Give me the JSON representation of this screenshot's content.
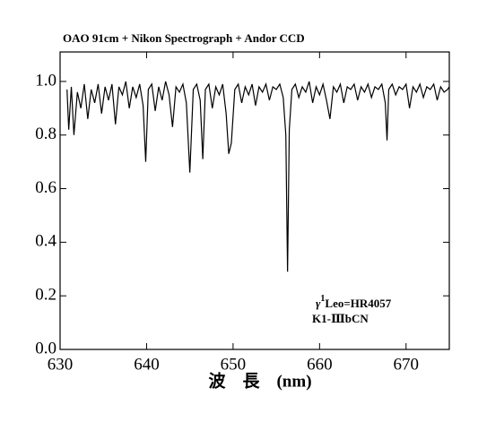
{
  "chart_data": {
    "type": "line",
    "title": "OAO 91cm + Nikon Spectrograph + Andor CCD",
    "xlabel": "波　長　(nm)",
    "annotations": {
      "symbol": "γ",
      "superscript": "1",
      "star": "Leo=HR4057",
      "class": "K1-ⅢbCN"
    },
    "xlim": [
      630,
      675
    ],
    "ylim": [
      0,
      1.11
    ],
    "xticks": [
      630,
      640,
      650,
      660,
      670
    ],
    "yticks": [
      {
        "value": 0,
        "label": "0.0"
      },
      0.2,
      0.4,
      0.6,
      0.8,
      {
        "value": 1,
        "label": "1.0"
      }
    ],
    "color": "#000000",
    "x": [
      630.8,
      631.0,
      631.3,
      631.6,
      632.0,
      632.4,
      632.8,
      633.2,
      633.6,
      634.0,
      634.4,
      634.8,
      635.2,
      635.6,
      636.0,
      636.4,
      636.8,
      637.2,
      637.6,
      638.0,
      638.4,
      638.8,
      639.2,
      639.6,
      639.9,
      640.2,
      640.6,
      641.0,
      641.4,
      641.8,
      642.2,
      642.6,
      643.0,
      643.4,
      643.8,
      644.2,
      644.6,
      645.0,
      645.4,
      645.8,
      646.2,
      646.5,
      646.8,
      647.2,
      647.6,
      648.0,
      648.4,
      648.8,
      649.2,
      649.5,
      649.8,
      650.2,
      650.6,
      651.0,
      651.4,
      651.8,
      652.2,
      652.6,
      653.0,
      653.4,
      653.8,
      654.2,
      654.6,
      655.0,
      655.4,
      655.8,
      656.1,
      656.3,
      656.5,
      656.8,
      657.2,
      657.6,
      658.0,
      658.4,
      658.8,
      659.2,
      659.6,
      660.0,
      660.4,
      660.8,
      661.2,
      661.6,
      662.0,
      662.4,
      662.8,
      663.2,
      663.6,
      664.0,
      664.4,
      664.8,
      665.2,
      665.6,
      666.0,
      666.4,
      666.8,
      667.2,
      667.6,
      667.8,
      668.0,
      668.4,
      668.8,
      669.2,
      669.6,
      670.0,
      670.4,
      670.8,
      671.2,
      671.6,
      672.0,
      672.4,
      672.8,
      673.2,
      673.6,
      674.0,
      674.4,
      674.8,
      675.0
    ],
    "values": [
      0.97,
      0.82,
      0.98,
      0.8,
      0.96,
      0.9,
      0.99,
      0.86,
      0.97,
      0.92,
      0.99,
      0.88,
      0.98,
      0.93,
      0.99,
      0.84,
      0.98,
      0.95,
      1.0,
      0.9,
      0.98,
      0.94,
      0.99,
      0.91,
      0.7,
      0.97,
      0.99,
      0.89,
      0.98,
      0.93,
      1.0,
      0.95,
      0.83,
      0.98,
      0.96,
      0.99,
      0.92,
      0.66,
      0.97,
      0.99,
      0.93,
      0.71,
      0.97,
      0.99,
      0.9,
      0.98,
      0.95,
      0.99,
      0.88,
      0.73,
      0.77,
      0.97,
      0.99,
      0.92,
      0.98,
      0.95,
      0.99,
      0.91,
      0.98,
      0.96,
      0.99,
      0.93,
      0.98,
      0.97,
      0.99,
      0.94,
      0.8,
      0.29,
      0.82,
      0.97,
      0.99,
      0.94,
      0.98,
      0.96,
      1.0,
      0.92,
      0.98,
      0.95,
      0.99,
      0.93,
      0.86,
      0.98,
      0.96,
      0.99,
      0.92,
      0.98,
      0.97,
      0.99,
      0.93,
      0.98,
      0.96,
      0.99,
      0.94,
      0.98,
      0.97,
      0.99,
      0.92,
      0.78,
      0.97,
      0.99,
      0.95,
      0.98,
      0.97,
      0.99,
      0.9,
      0.98,
      0.96,
      0.99,
      0.94,
      0.98,
      0.97,
      0.99,
      0.93,
      0.98,
      0.96,
      0.97,
      0.98
    ]
  }
}
